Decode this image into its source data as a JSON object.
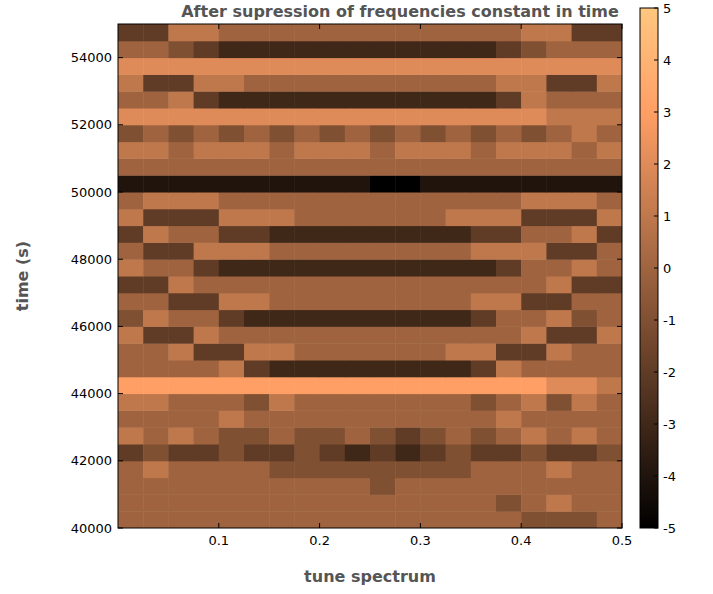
{
  "chart_data": {
    "type": "heatmap",
    "title": "After supression of frequencies constant in time",
    "x_label": "tune spectrum",
    "y_label": "time (s)",
    "xlim": [
      0,
      0.5
    ],
    "xticks": [
      0.1,
      0.2,
      0.3,
      0.4,
      0.5
    ],
    "ylim": [
      40000,
      55000
    ],
    "yticks": [
      40000,
      42000,
      44000,
      46000,
      48000,
      50000,
      52000,
      54000
    ],
    "grid": false,
    "x": [
      0.0125,
      0.0375,
      0.0625,
      0.0875,
      0.1125,
      0.1375,
      0.1625,
      0.1875,
      0.2125,
      0.2375,
      0.2625,
      0.2875,
      0.3125,
      0.3375,
      0.3625,
      0.3875,
      0.4125,
      0.4375,
      0.4625,
      0.4875
    ],
    "y": [
      40250,
      40750,
      41250,
      41750,
      42250,
      42750,
      43250,
      43750,
      44250,
      44750,
      45250,
      45750,
      46250,
      46750,
      47250,
      47750,
      48250,
      48750,
      49250,
      49750,
      50250,
      50750,
      51250,
      51750,
      52250,
      52750,
      53250,
      53750,
      54250,
      54750
    ],
    "cells": [
      [
        0,
        0,
        0,
        0,
        0,
        0,
        0,
        0,
        0,
        0,
        0,
        0,
        0,
        0,
        0,
        0,
        -1,
        -1,
        -1,
        0
      ],
      [
        0,
        0,
        0,
        0,
        0,
        0,
        0,
        0,
        0,
        0,
        0,
        0,
        0,
        0,
        0,
        -1,
        0,
        1,
        0,
        0
      ],
      [
        0,
        0,
        0,
        0,
        0,
        0,
        0,
        0,
        0,
        0,
        -1,
        0,
        0,
        0,
        0,
        0,
        0,
        0,
        0,
        0
      ],
      [
        0,
        1,
        0,
        0,
        0,
        0,
        -1,
        -1,
        -1,
        -1,
        -1,
        -1,
        -1,
        -1,
        0,
        0,
        0,
        1,
        0,
        0
      ],
      [
        -2,
        -1,
        -2,
        -2,
        -1,
        -2,
        -2,
        -1,
        -2,
        -3,
        -2,
        -3,
        -2,
        -1,
        -2,
        -2,
        -1,
        -2,
        -2,
        -1
      ],
      [
        1,
        0,
        1,
        0,
        -1,
        -1,
        0,
        -1,
        -1,
        0,
        -1,
        -2,
        -1,
        0,
        -1,
        0,
        1,
        0,
        1,
        0
      ],
      [
        0,
        0,
        0,
        0,
        1,
        0,
        0,
        0,
        0,
        0,
        0,
        0,
        0,
        0,
        0,
        1,
        0,
        0,
        0,
        0
      ],
      [
        1,
        1,
        0,
        0,
        0,
        -1,
        1,
        0,
        0,
        0,
        0,
        0,
        0,
        0,
        -1,
        0,
        1,
        -1,
        1,
        0
      ],
      [
        3,
        3,
        3,
        3,
        3,
        3,
        3,
        3,
        3,
        3,
        3,
        3,
        3,
        3,
        3,
        3,
        3,
        2,
        2,
        1
      ],
      [
        0,
        0,
        0,
        0,
        1,
        -2,
        -3,
        -3,
        -3,
        -3,
        -3,
        -3,
        -3,
        -3,
        -2,
        1,
        0,
        0,
        0,
        0
      ],
      [
        0,
        0,
        1,
        -2,
        -2,
        1,
        1,
        0,
        0,
        0,
        0,
        0,
        0,
        1,
        1,
        -2,
        -2,
        1,
        0,
        0
      ],
      [
        1,
        -2,
        -2,
        1,
        0,
        0,
        0,
        0,
        0,
        0,
        0,
        0,
        0,
        0,
        0,
        0,
        1,
        -2,
        -2,
        1
      ],
      [
        -1,
        1,
        0,
        0,
        -2,
        -3,
        -3,
        -3,
        -3,
        -3,
        -3,
        -3,
        -3,
        -3,
        -2,
        0,
        0,
        1,
        -1,
        0
      ],
      [
        0,
        0,
        -2,
        -2,
        1,
        1,
        0,
        0,
        0,
        0,
        0,
        0,
        0,
        0,
        1,
        1,
        -2,
        -2,
        0,
        0
      ],
      [
        -2,
        -2,
        1,
        0,
        0,
        0,
        0,
        0,
        0,
        0,
        0,
        0,
        0,
        0,
        0,
        0,
        0,
        1,
        -2,
        -2
      ],
      [
        1,
        0,
        0,
        -2,
        -3,
        -3,
        -3,
        -3,
        -3,
        -3,
        -3,
        -3,
        -3,
        -3,
        -3,
        -2,
        0,
        0,
        1,
        0
      ],
      [
        0,
        -2,
        -2,
        1,
        1,
        1,
        0,
        0,
        0,
        0,
        0,
        0,
        0,
        0,
        1,
        1,
        1,
        -2,
        -2,
        0
      ],
      [
        -2,
        1,
        0,
        0,
        -2,
        -2,
        -3,
        -3,
        -3,
        -3,
        -3,
        -3,
        -3,
        -3,
        -2,
        -2,
        0,
        0,
        1,
        -2
      ],
      [
        1,
        -2,
        -2,
        -2,
        1,
        1,
        1,
        0,
        0,
        0,
        0,
        0,
        0,
        1,
        1,
        1,
        -2,
        -2,
        -2,
        1
      ],
      [
        0,
        1,
        1,
        1,
        0,
        0,
        0,
        0,
        0,
        0,
        0,
        0,
        0,
        0,
        0,
        0,
        1,
        1,
        1,
        0
      ],
      [
        -4,
        -4,
        -4,
        -4,
        -4,
        -4,
        -4,
        -4,
        -4,
        -4,
        -5,
        -5,
        -4,
        -4,
        -4,
        -4,
        -4,
        -4,
        -4,
        -4
      ],
      [
        0,
        0,
        0,
        0,
        0,
        0,
        0,
        0,
        0,
        0,
        0,
        0,
        0,
        0,
        0,
        0,
        0,
        0,
        0,
        0
      ],
      [
        1,
        1,
        0,
        1,
        1,
        1,
        0,
        1,
        1,
        1,
        0,
        1,
        1,
        1,
        0,
        1,
        1,
        1,
        0,
        1
      ],
      [
        -1,
        0,
        -1,
        0,
        -1,
        0,
        -1,
        0,
        -1,
        0,
        -1,
        0,
        -1,
        0,
        -1,
        0,
        -1,
        0,
        1,
        0
      ],
      [
        2,
        2,
        2,
        2,
        2,
        2,
        2,
        2,
        2,
        2,
        2,
        2,
        2,
        2,
        2,
        2,
        2,
        1,
        1,
        1
      ],
      [
        0,
        0,
        1,
        -2,
        -3,
        -3,
        -3,
        -3,
        -3,
        -3,
        -3,
        -3,
        -3,
        -3,
        -3,
        -2,
        1,
        0,
        0,
        0
      ],
      [
        1,
        -2,
        -2,
        1,
        1,
        0,
        0,
        0,
        0,
        0,
        0,
        0,
        0,
        0,
        0,
        1,
        1,
        -2,
        -2,
        1
      ],
      [
        2,
        2,
        2,
        2,
        2,
        2,
        2,
        2,
        2,
        2,
        2,
        2,
        2,
        2,
        2,
        2,
        2,
        2,
        2,
        2
      ],
      [
        0,
        0,
        -1,
        -2,
        -3,
        -3,
        -3,
        -3,
        -3,
        -3,
        -3,
        -3,
        -3,
        -3,
        -3,
        -2,
        -1,
        0,
        0,
        0
      ],
      [
        -2,
        -2,
        1,
        1,
        0,
        0,
        0,
        0,
        0,
        0,
        0,
        0,
        0,
        0,
        0,
        0,
        1,
        1,
        -2,
        -2
      ]
    ],
    "clim": [
      -5,
      5
    ],
    "cticks": [
      -5,
      -4,
      -3,
      -2,
      -1,
      0,
      1,
      2,
      3,
      4,
      5
    ]
  }
}
